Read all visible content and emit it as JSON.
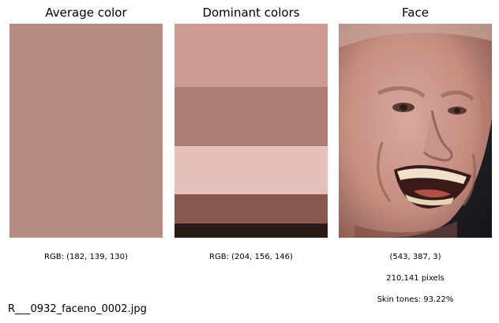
{
  "panels": {
    "average": {
      "title": "Average color",
      "color": "#b68b82",
      "caption": "RGB: (182, 139, 130)"
    },
    "dominant": {
      "title": "Dominant colors",
      "colors": [
        "#cc9c92",
        "#ad7f74",
        "#e6c1bb",
        "#885a4f",
        "#2a1a18"
      ],
      "fractions": [
        0.295,
        0.275,
        0.225,
        0.135,
        0.07
      ],
      "caption": "RGB: (204, 156, 146)"
    },
    "face": {
      "title": "Face",
      "caption_shape": "(543, 387, 3)",
      "caption_pixels": "210,141 pixels",
      "caption_skin": "Skin tones: 93.22%"
    }
  },
  "filename": "R___0932_faceno_0002.jpg"
}
